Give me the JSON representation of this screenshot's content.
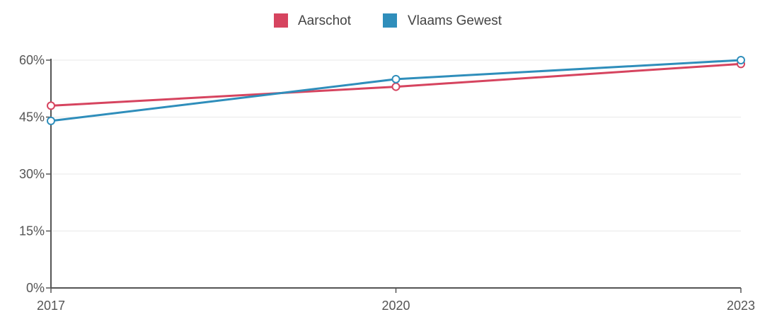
{
  "chart_data": {
    "type": "line",
    "x": [
      "2017",
      "2020",
      "2023"
    ],
    "ylim": [
      0,
      60
    ],
    "yticks": [
      0,
      15,
      30,
      45,
      60
    ],
    "ytick_labels": [
      "0%",
      "15%",
      "30%",
      "45%",
      "60%"
    ],
    "grid": true,
    "legend_position": "top-center",
    "series": [
      {
        "name": "Aarschot",
        "color": "#d6445f",
        "values": [
          48,
          53,
          59
        ]
      },
      {
        "name": "Vlaams Gewest",
        "color": "#2f8ebb",
        "values": [
          44,
          55,
          60
        ]
      }
    ]
  }
}
